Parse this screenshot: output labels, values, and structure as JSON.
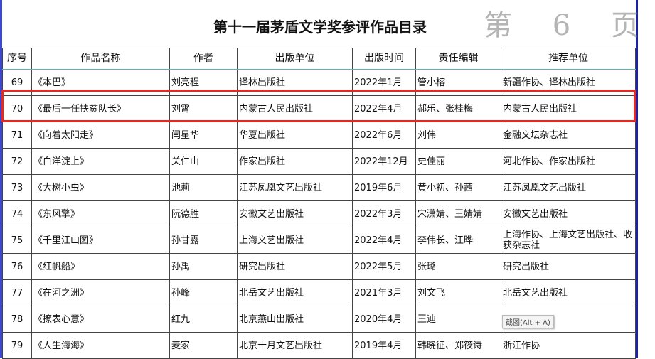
{
  "title": "第十一届茅盾文学奖参评作品目录",
  "watermark": "第 6 页",
  "tooltip": "截图(Alt + A)",
  "colors": {
    "highlight": "#e8281e",
    "frame": "#3b46d6"
  },
  "headers": [
    "序号",
    "作品名称",
    "作者",
    "出版单位",
    "出版时间",
    "责任编辑",
    "推荐单位"
  ],
  "rows": [
    [
      "69",
      "《本巴》",
      "刘亮程",
      "译林出版社",
      "2022年1月",
      "管小榕",
      "新疆作协、译林出版社"
    ],
    [
      "70",
      "《最后一任扶贫队长》",
      "刘霄",
      "内蒙古人民出版社",
      "2022年4月",
      "郝乐、张桂梅",
      "内蒙古人民出版社"
    ],
    [
      "71",
      "《向着太阳走》",
      "闫星华",
      "华夏出版社",
      "2022年6月",
      "刘伟",
      "金融文坛杂志社"
    ],
    [
      "72",
      "《白洋淀上》",
      "关仁山",
      "作家出版社",
      "2022年12月",
      "史佳丽",
      "河北作协、作家出版社"
    ],
    [
      "73",
      "《大树小虫》",
      "池莉",
      "江苏凤凰文艺出版社",
      "2019年6月",
      "黄小初、孙茜",
      "江苏凤凰文艺出版社"
    ],
    [
      "74",
      "《东风擎》",
      "阮德胜",
      "安徽文艺出版社",
      "2022年3月",
      "宋潇婧、王婧婧",
      "安徽文艺出版社"
    ],
    [
      "75",
      "《千里江山图》",
      "孙甘露",
      "上海文艺出版社",
      "2022年4月",
      "李伟长、江晔",
      "上海作协、上海文艺出版社、收获杂志社"
    ],
    [
      "76",
      "《红帆船》",
      "孙禹",
      "研究出版社",
      "2022年5月",
      "张璐",
      "研究出版社"
    ],
    [
      "77",
      "《在河之洲》",
      "孙峰",
      "北岳文艺出版社",
      "2021年3月",
      "刘文飞",
      "北岳文艺出版社"
    ],
    [
      "78",
      "《撩表心意》",
      "红九",
      "北京燕山出版社",
      "2020年4月",
      "王迪",
      ""
    ],
    [
      "79",
      "《人生海海》",
      "麦家",
      "北京十月文艺出版社",
      "2019年4月",
      "韩晓征、郑筱诗",
      "浙江作协"
    ]
  ]
}
